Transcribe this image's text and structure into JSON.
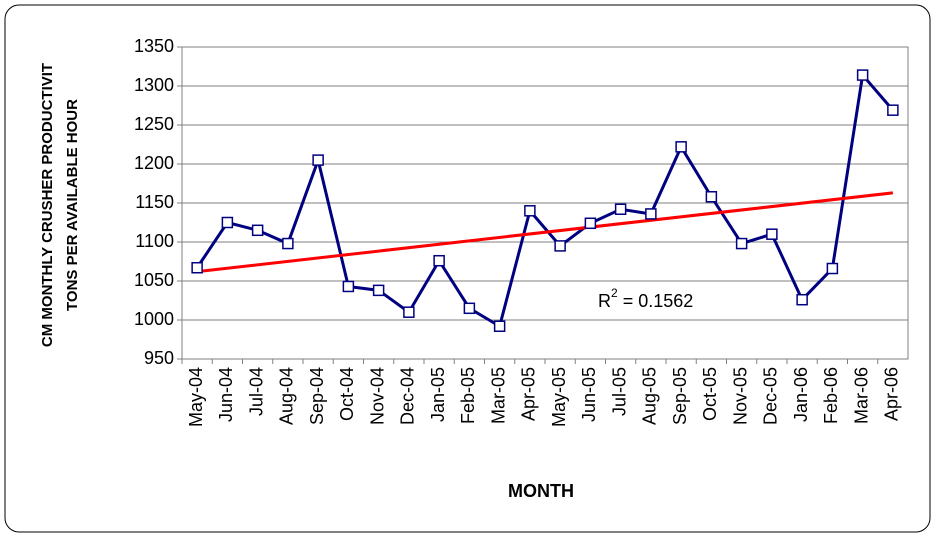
{
  "chart_data": {
    "type": "line",
    "ylabel": [
      "CM MONTHLY CRUSHER PRODUCTIVIT",
      "TONS PER AVAILABLE HOUR"
    ],
    "xlabel": "MONTH",
    "categories": [
      "May-04",
      "Jun-04",
      "Jul-04",
      "Aug-04",
      "Sep-04",
      "Oct-04",
      "Nov-04",
      "Dec-04",
      "Jan-05",
      "Feb-05",
      "Mar-05",
      "Apr-05",
      "May-05",
      "Jun-05",
      "Jul-05",
      "Aug-05",
      "Sep-05",
      "Oct-05",
      "Nov-05",
      "Dec-05",
      "Jan-06",
      "Feb-06",
      "Mar-06",
      "Apr-06"
    ],
    "series": [
      {
        "color": "#000080",
        "values": [
          1067,
          1125,
          1115,
          1098,
          1205,
          1043,
          1038,
          1010,
          1076,
          1015,
          992,
          1140,
          1095,
          1124,
          1142,
          1136,
          1222,
          1158,
          1098,
          1110,
          1026,
          1066,
          1314,
          1269
        ]
      }
    ],
    "trendline": {
      "color": "#ff0000",
      "start": 1062,
      "end": 1163
    },
    "annotation": {
      "base": "R",
      "sup": "2",
      "text": " = 0.1562"
    },
    "ylim": [
      950,
      1350
    ],
    "yticks": [
      950,
      1000,
      1050,
      1100,
      1150,
      1200,
      1250,
      1300,
      1350
    ],
    "grid": true
  }
}
